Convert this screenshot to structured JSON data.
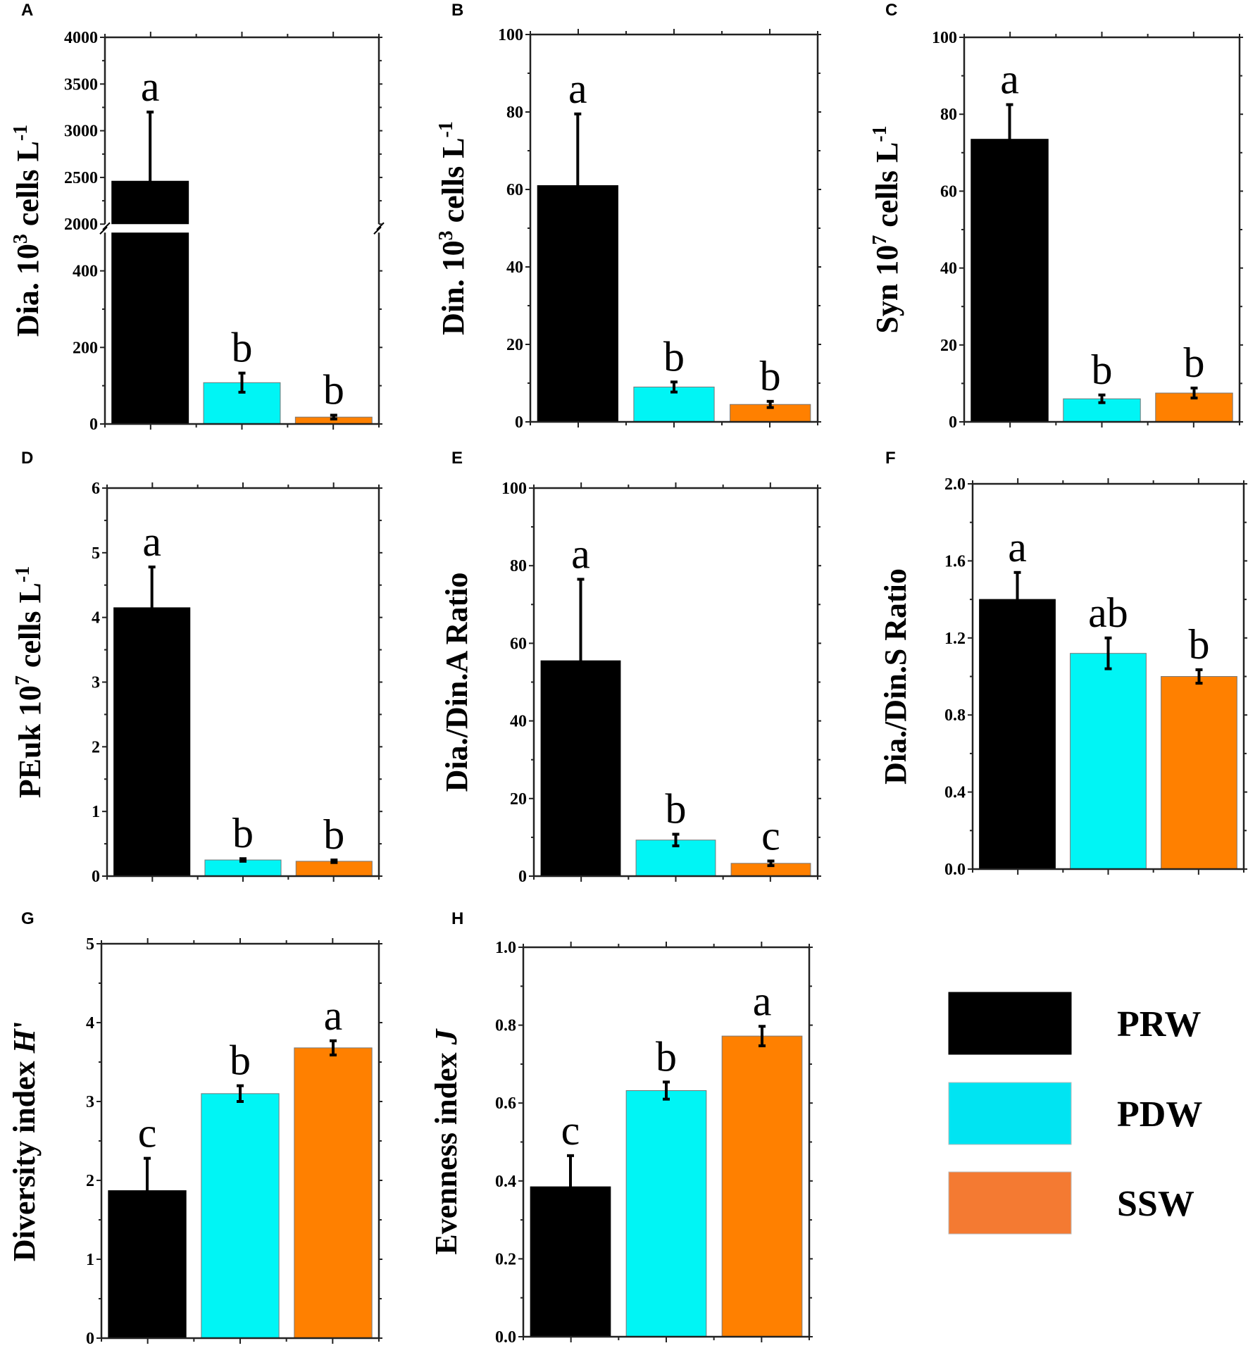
{
  "colors": {
    "PRW": "#000000",
    "PDW": "#00f5f5",
    "SSW": "#ff8000"
  },
  "legend": [
    {
      "name": "PRW",
      "color": "#000000"
    },
    {
      "name": "PDW",
      "color": "#00e4f2"
    },
    {
      "name": "SSW",
      "color": "#f47a32"
    }
  ],
  "chart_data": [
    {
      "panel": "A",
      "type": "bar",
      "categories": [
        "PRW",
        "PDW",
        "SSW"
      ],
      "ylabel": [
        {
          "t": "Dia. 10",
          "s": "n"
        },
        {
          "t": "3",
          "s": "sup"
        },
        {
          "t": " cells L",
          "s": "n"
        },
        {
          "t": "-1",
          "s": "sup"
        }
      ],
      "broken_axis": true,
      "ylim_lower": [
        0,
        500
      ],
      "ylim_upper": [
        2000,
        4000
      ],
      "yticks": [
        0,
        200,
        400,
        2000,
        2500,
        3000,
        3500,
        4000
      ],
      "ytick_labels": [
        "0",
        "200",
        "400",
        "2000",
        "2500",
        "3000",
        "3500",
        "4000"
      ],
      "values": [
        2460,
        108,
        18
      ],
      "err": [
        740,
        25,
        5
      ],
      "letters": [
        "a",
        "b",
        "b"
      ]
    },
    {
      "panel": "B",
      "type": "bar",
      "categories": [
        "PRW",
        "PDW",
        "SSW"
      ],
      "ylabel": [
        {
          "t": "Din. 10",
          "s": "n"
        },
        {
          "t": "3",
          "s": "sup"
        },
        {
          "t": " cells L",
          "s": "n"
        },
        {
          "t": "-1",
          "s": "sup"
        }
      ],
      "ylim": [
        0,
        100
      ],
      "yticks": [
        0,
        20,
        40,
        60,
        80,
        100
      ],
      "ytick_labels": [
        "0",
        "20",
        "40",
        "60",
        "80",
        "100"
      ],
      "values": [
        61,
        9,
        4.5
      ],
      "err": [
        18.5,
        1.3,
        0.8
      ],
      "letters": [
        "a",
        "b",
        "b"
      ]
    },
    {
      "panel": "C",
      "type": "bar",
      "categories": [
        "PRW",
        "PDW",
        "SSW"
      ],
      "ylabel": [
        {
          "t": "Syn 10",
          "s": "n"
        },
        {
          "t": "7",
          "s": "sup"
        },
        {
          "t": " cells L",
          "s": "n"
        },
        {
          "t": "-1",
          "s": "sup"
        }
      ],
      "ylim": [
        0,
        100
      ],
      "yticks": [
        0,
        20,
        40,
        60,
        80,
        100
      ],
      "ytick_labels": [
        "0",
        "20",
        "40",
        "60",
        "80",
        "100"
      ],
      "values": [
        73.5,
        6,
        7.5
      ],
      "err": [
        9,
        1,
        1.3
      ],
      "letters": [
        "a",
        "b",
        "b"
      ]
    },
    {
      "panel": "D",
      "type": "bar",
      "categories": [
        "PRW",
        "PDW",
        "SSW"
      ],
      "ylabel": [
        {
          "t": "PEuk 10",
          "s": "n"
        },
        {
          "t": "7",
          "s": "sup"
        },
        {
          "t": " cells L",
          "s": "n"
        },
        {
          "t": "-1",
          "s": "sup"
        }
      ],
      "ylim": [
        0,
        6
      ],
      "yticks": [
        0,
        1,
        2,
        3,
        4,
        5,
        6
      ],
      "ytick_labels": [
        "0",
        "1",
        "2",
        "3",
        "4",
        "5",
        "6"
      ],
      "values": [
        4.15,
        0.25,
        0.23
      ],
      "err": [
        0.63,
        0.02,
        0.02
      ],
      "letters": [
        "a",
        "b",
        "b"
      ]
    },
    {
      "panel": "E",
      "type": "bar",
      "categories": [
        "PRW",
        "PDW",
        "SSW"
      ],
      "ylabel": [
        {
          "t": "Dia./Din.A Ratio",
          "s": "n"
        }
      ],
      "ylim": [
        0,
        100
      ],
      "yticks": [
        0,
        20,
        40,
        60,
        80,
        100
      ],
      "ytick_labels": [
        "0",
        "20",
        "40",
        "60",
        "80",
        "100"
      ],
      "values": [
        55.5,
        9.3,
        3.3
      ],
      "err": [
        21,
        1.5,
        0.6
      ],
      "letters": [
        "a",
        "b",
        "c"
      ]
    },
    {
      "panel": "F",
      "type": "bar",
      "categories": [
        "PRW",
        "PDW",
        "SSW"
      ],
      "ylabel": [
        {
          "t": "Dia./Din.S Ratio",
          "s": "n"
        }
      ],
      "ylim": [
        0,
        2.0
      ],
      "yticks": [
        0,
        0.4,
        0.8,
        1.2,
        1.6,
        2.0
      ],
      "ytick_labels": [
        "0.0",
        "0.4",
        "0.8",
        "1.2",
        "1.6",
        "2.0"
      ],
      "values": [
        1.4,
        1.12,
        1.0
      ],
      "err": [
        0.14,
        0.08,
        0.035
      ],
      "letters": [
        "a",
        "ab",
        "b"
      ]
    },
    {
      "panel": "G",
      "type": "bar",
      "categories": [
        "PRW",
        "PDW",
        "SSW"
      ],
      "ylabel": [
        {
          "t": "Diversity index ",
          "s": "n"
        },
        {
          "t": "H",
          "s": "it"
        },
        {
          "t": "'",
          "s": "n"
        }
      ],
      "ylim": [
        0,
        5
      ],
      "yticks": [
        0,
        1,
        2,
        3,
        4,
        5
      ],
      "ytick_labels": [
        "0",
        "1",
        "2",
        "3",
        "4",
        "5"
      ],
      "values": [
        1.87,
        3.1,
        3.68
      ],
      "err": [
        0.41,
        0.1,
        0.09
      ],
      "letters": [
        "c",
        "b",
        "a"
      ]
    },
    {
      "panel": "H",
      "type": "bar",
      "categories": [
        "PRW",
        "PDW",
        "SSW"
      ],
      "ylabel": [
        {
          "t": "Evenness index ",
          "s": "n"
        },
        {
          "t": "J",
          "s": "it"
        }
      ],
      "ylim": [
        0,
        1.0
      ],
      "yticks": [
        0,
        0.2,
        0.4,
        0.6,
        0.8,
        1.0
      ],
      "ytick_labels": [
        "0.0",
        "0.2",
        "0.4",
        "0.6",
        "0.8",
        "1.0"
      ],
      "values": [
        0.385,
        0.632,
        0.772
      ],
      "err": [
        0.08,
        0.022,
        0.025
      ],
      "letters": [
        "c",
        "b",
        "a"
      ]
    }
  ]
}
